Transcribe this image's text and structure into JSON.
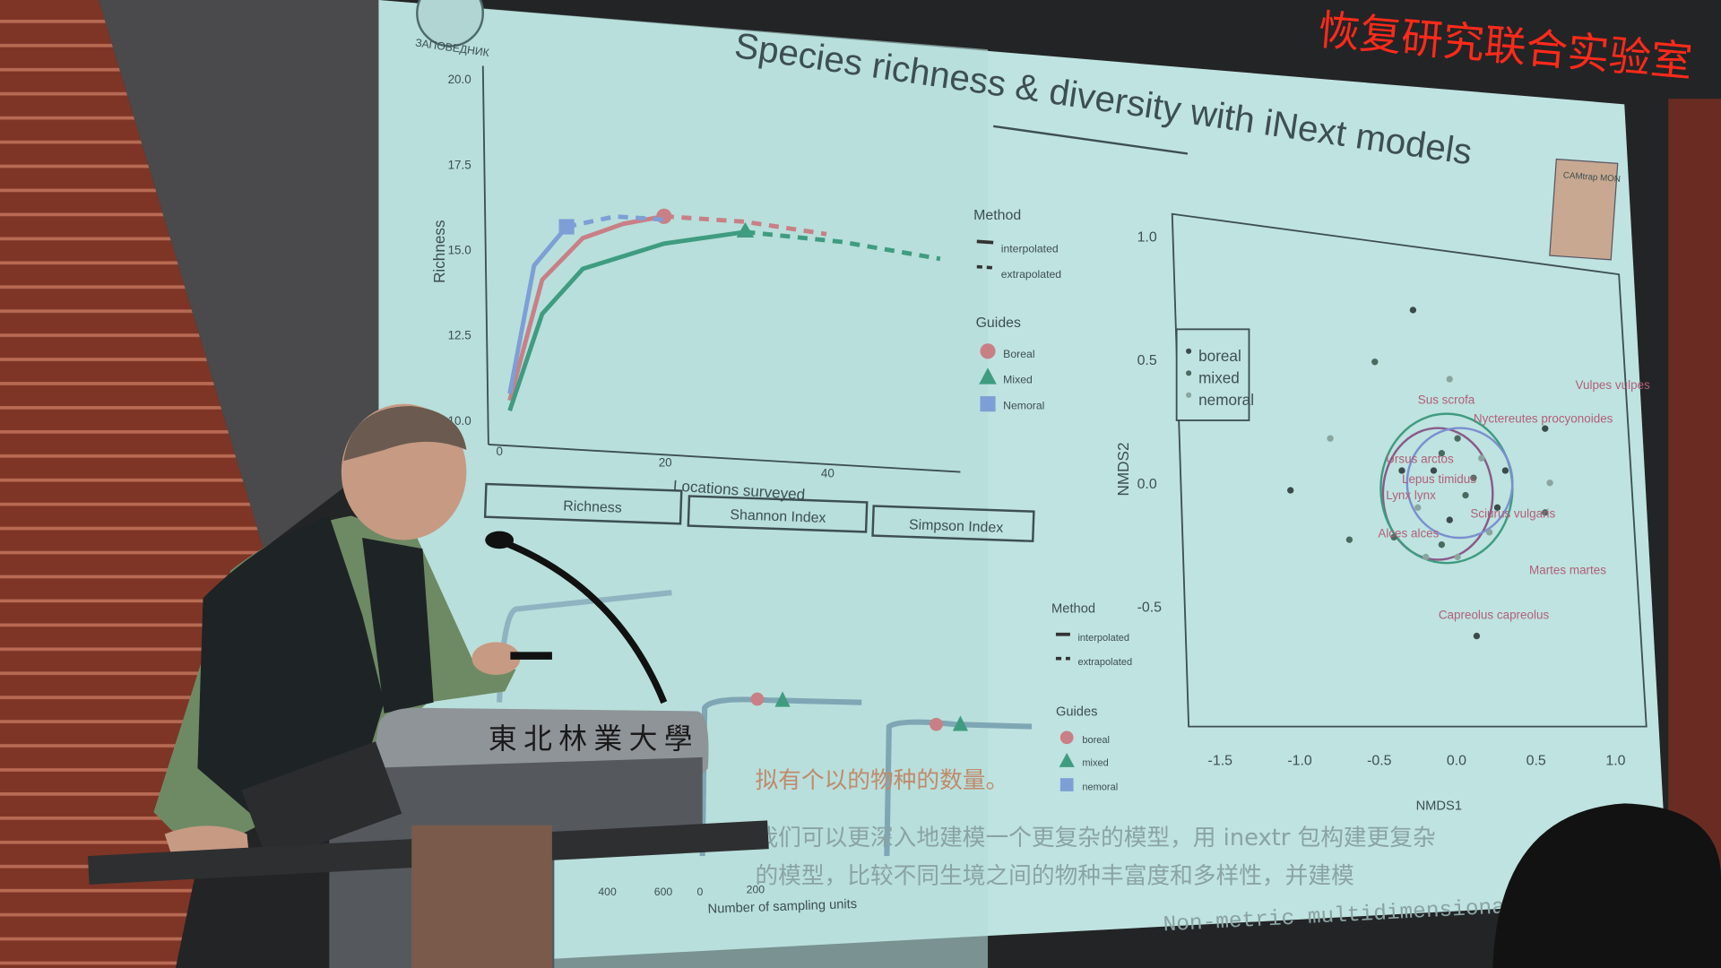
{
  "led_banner": "恢复研究联合实验室",
  "slide": {
    "title": "Species richness & diversity with iNext models",
    "logo_left_text": "ЗАПОВЕДНИК",
    "logo_right_text": "CAMtrap MON",
    "subtitle_line1": "拟有个以的物种的数量。",
    "subtitle_line2": "我们可以更深入地建模一个更复杂的模型，用 inextr 包构建更复杂",
    "subtitle_line3": "的模型，比较不同生境之间的物种丰富度和多样性，并建模",
    "overlay_caption": "Non-metric multidimensional scal"
  },
  "podium_text": "東北林業大學",
  "colors": {
    "boreal": "#c97f86",
    "mixed": "#3f9c80",
    "nemoral": "#7d9fd6",
    "screen": "#bfe3e0",
    "wall": "#8a3b2a"
  },
  "chart_data": [
    {
      "type": "line",
      "xlabel": "Locations surveyed",
      "ylabel": "Richness",
      "xticks": [
        "0",
        "20",
        "40"
      ],
      "yticks": [
        "10.0",
        "12.5",
        "15.0",
        "17.5",
        "20.0"
      ],
      "ylim": [
        10,
        20
      ],
      "legend_method_title": "Method",
      "legend_method": [
        "interpolated",
        "extrapolated"
      ],
      "legend_guides_title": "Guides",
      "legend_guides": [
        "Boreal",
        "Mixed",
        "Nemoral"
      ],
      "series": [
        {
          "name": "Boreal",
          "interpolated": [
            [
              1,
              10.6
            ],
            [
              5,
              14.2
            ],
            [
              10,
              15.5
            ],
            [
              15,
              16.0
            ],
            [
              20,
              16.3
            ]
          ],
          "extrapolated": [
            [
              20,
              16.3
            ],
            [
              30,
              16.3
            ],
            [
              40,
              16.1
            ]
          ]
        },
        {
          "name": "Mixed",
          "interpolated": [
            [
              1,
              10.3
            ],
            [
              5,
              13.2
            ],
            [
              10,
              14.6
            ],
            [
              20,
              15.5
            ],
            [
              30,
              16.0
            ]
          ],
          "extrapolated": [
            [
              30,
              16.0
            ],
            [
              42,
              15.9
            ],
            [
              54,
              15.6
            ]
          ]
        },
        {
          "name": "Nemoral",
          "interpolated": [
            [
              1,
              10.8
            ],
            [
              4,
              14.6
            ],
            [
              8,
              15.8
            ]
          ],
          "extrapolated": [
            [
              8,
              15.8
            ],
            [
              14,
              16.2
            ],
            [
              20,
              16.2
            ]
          ]
        }
      ]
    },
    {
      "type": "line",
      "facets": [
        "Richness",
        "Shannon Index",
        "Simpson Index"
      ],
      "xlabel": "Number of sampling units",
      "xticks": [
        "400",
        "600",
        "0",
        "200"
      ],
      "legend_method_title": "Method",
      "legend_method": [
        "interpolated",
        "extrapolated"
      ],
      "legend_guides_title": "Guides",
      "legend_guides": [
        "boreal",
        "mixed",
        "nemoral"
      ]
    },
    {
      "type": "scatter",
      "xlabel": "NMDS1",
      "ylabel": "NMDS2",
      "xticks": [
        "-1.5",
        "-1.0",
        "-0.5",
        "0.0",
        "0.5",
        "1.0"
      ],
      "yticks": [
        "1.0",
        "0.5",
        "0.0",
        "-0.5"
      ],
      "xlim": [
        -1.6,
        1.2
      ],
      "ylim": [
        -1.0,
        1.1
      ],
      "legend": [
        "boreal",
        "mixed",
        "nemoral"
      ],
      "points": [
        [
          -0.28,
          0.7
        ],
        [
          -0.52,
          0.49
        ],
        [
          -0.8,
          0.18
        ],
        [
          -1.05,
          -0.03
        ],
        [
          -0.68,
          -0.23
        ],
        [
          -0.05,
          0.42
        ],
        [
          0.55,
          0.22
        ],
        [
          0.55,
          -0.12
        ],
        [
          0.58,
          0.0
        ],
        [
          0.12,
          -0.62
        ],
        [
          -0.1,
          -0.25
        ],
        [
          -0.25,
          -0.1
        ],
        [
          -0.15,
          0.05
        ],
        [
          0.05,
          -0.05
        ],
        [
          0.15,
          0.1
        ],
        [
          -0.35,
          0.05
        ],
        [
          0.0,
          0.18
        ],
        [
          0.2,
          -0.2
        ],
        [
          -0.05,
          -0.15
        ],
        [
          0.1,
          0.02
        ],
        [
          -0.2,
          -0.3
        ],
        [
          0.3,
          0.05
        ],
        [
          -0.4,
          -0.22
        ],
        [
          0.0,
          -0.3
        ],
        [
          0.25,
          -0.1
        ],
        [
          -0.1,
          0.12
        ]
      ],
      "species": [
        {
          "name": "Vulpes vulpes",
          "x": 0.74,
          "y": 0.38
        },
        {
          "name": "Sus scrofa",
          "x": -0.25,
          "y": 0.32
        },
        {
          "name": "Nyctereutes procyonoides",
          "x": 0.1,
          "y": 0.27
        },
        {
          "name": "Ursus arctos",
          "x": -0.45,
          "y": 0.08
        },
        {
          "name": "Lepus timidus",
          "x": -0.35,
          "y": 0.0
        },
        {
          "name": "Lynx lynx",
          "x": -0.45,
          "y": -0.04
        },
        {
          "name": "Sciurus vulgaris",
          "x": 0.08,
          "y": -0.14
        },
        {
          "name": "Alces alces",
          "x": -0.5,
          "y": -0.22
        },
        {
          "name": "Martes martes",
          "x": 0.45,
          "y": -0.37
        },
        {
          "name": "Capreolus capreolus",
          "x": -0.12,
          "y": -0.55
        }
      ]
    }
  ]
}
